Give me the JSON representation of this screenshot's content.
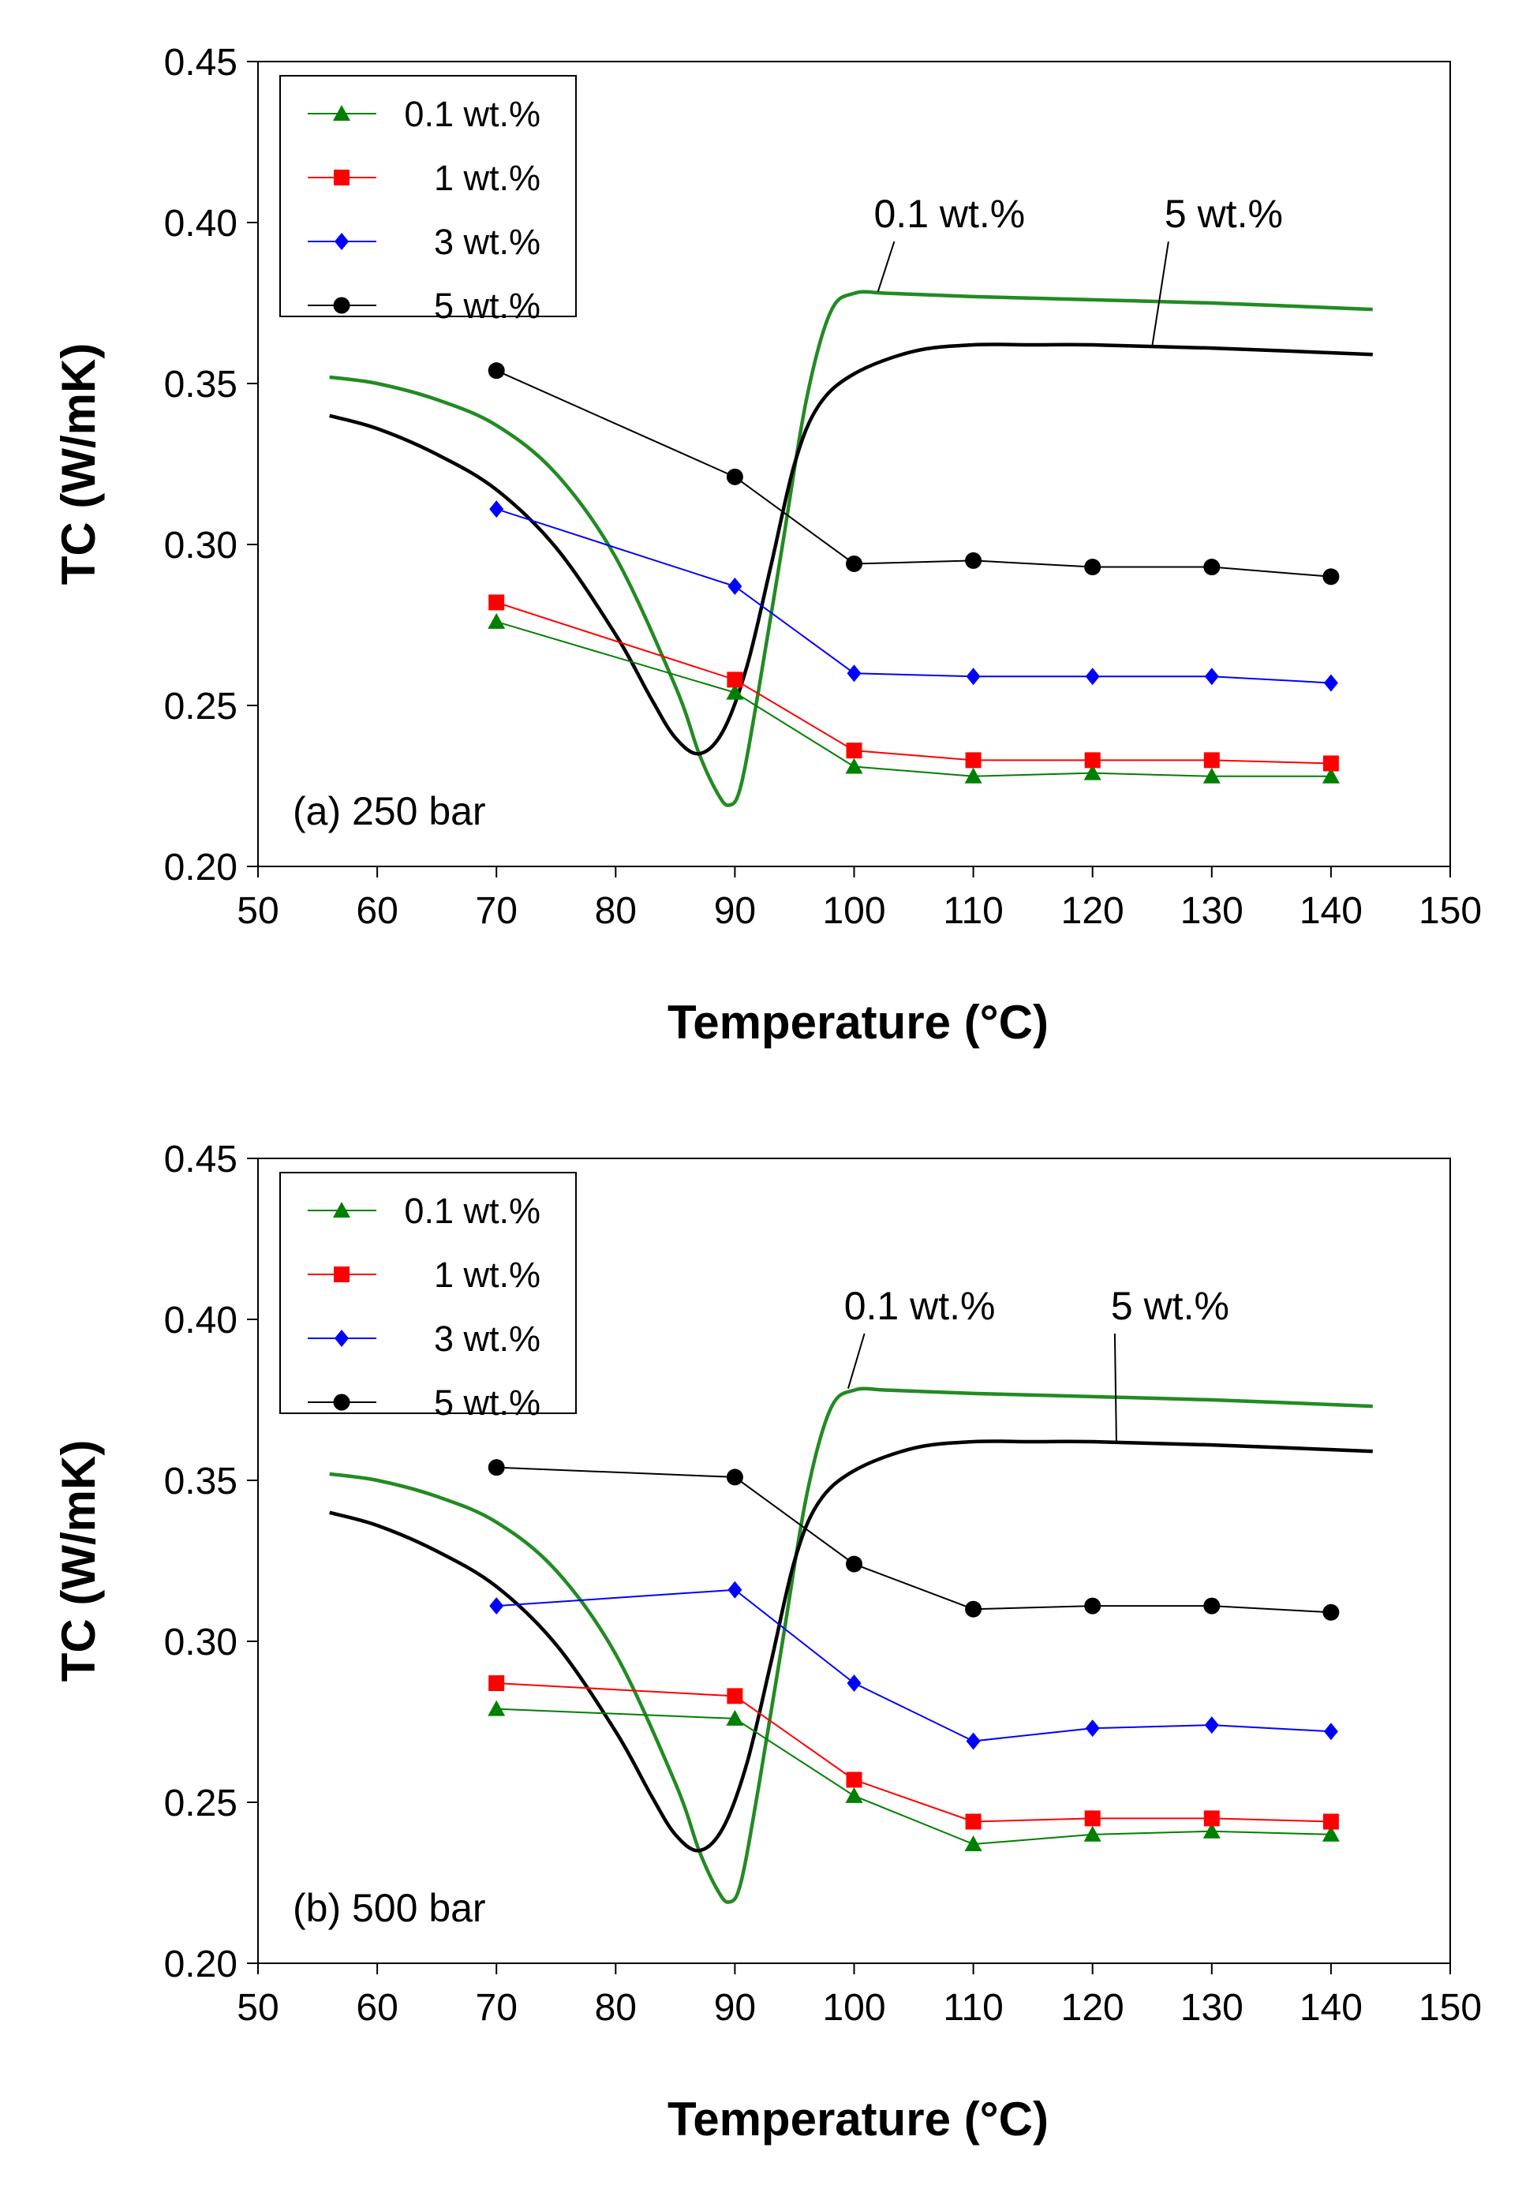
{
  "figure_labels": {
    "legend_title": ""
  },
  "colors": {
    "s0.1": "#008000",
    "s1": "#ff0000",
    "s3": "#0000ff",
    "s5": "#000000",
    "curve0.1": "#228b22",
    "curve5": "#000000"
  },
  "chart_data": [
    {
      "type": "line",
      "panel_label": "(a) 250 bar",
      "xlabel": "Temperature (°C)",
      "ylabel": "TC (W/mK)",
      "xlim": [
        50,
        150
      ],
      "ylim": [
        0.2,
        0.45
      ],
      "x_ticks": [
        "50",
        "60",
        "70",
        "80",
        "90",
        "100",
        "110",
        "120",
        "130",
        "140",
        "150"
      ],
      "y_ticks": [
        "0.20",
        "0.25",
        "0.30",
        "0.35",
        "0.40",
        "0.45"
      ],
      "legend": [
        "0.1 wt.%",
        "1 wt.%",
        "3 wt.%",
        "5 wt.%"
      ],
      "series": [
        {
          "name": "0.1 wt.%",
          "marker": "triangle",
          "x": [
            70,
            90,
            100,
            110,
            120,
            130,
            140
          ],
          "values": [
            0.276,
            0.254,
            0.231,
            0.228,
            0.229,
            0.228,
            0.228
          ]
        },
        {
          "name": "1 wt.%",
          "marker": "square",
          "x": [
            70,
            90,
            100,
            110,
            120,
            130,
            140
          ],
          "values": [
            0.282,
            0.258,
            0.236,
            0.233,
            0.233,
            0.233,
            0.232
          ]
        },
        {
          "name": "3 wt.%",
          "marker": "diamond",
          "x": [
            70,
            90,
            100,
            110,
            120,
            130,
            140
          ],
          "values": [
            0.311,
            0.287,
            0.26,
            0.259,
            0.259,
            0.259,
            0.257
          ]
        },
        {
          "name": "5 wt.%",
          "marker": "circle",
          "x": [
            70,
            90,
            100,
            110,
            120,
            130,
            140
          ],
          "values": [
            0.354,
            0.321,
            0.294,
            0.295,
            0.293,
            0.293,
            0.29
          ]
        }
      ],
      "curves": [
        {
          "name": "0.1 wt.%",
          "x": [
            56,
            60,
            65,
            70,
            75,
            80,
            85,
            87,
            88.5,
            89.5,
            90.5,
            92,
            94,
            96,
            98,
            100,
            103,
            110,
            120,
            130,
            143.5
          ],
          "values": [
            0.352,
            0.35,
            0.345,
            0.337,
            0.322,
            0.296,
            0.256,
            0.235,
            0.223,
            0.219,
            0.225,
            0.255,
            0.3,
            0.345,
            0.372,
            0.378,
            0.378,
            0.377,
            0.376,
            0.375,
            0.373
          ]
        },
        {
          "name": "5 wt.%",
          "x": [
            56,
            60,
            65,
            70,
            75,
            80,
            83,
            85,
            87,
            89,
            91,
            93,
            95,
            97,
            100,
            105,
            110,
            115,
            120,
            130,
            143.5
          ],
          "values": [
            0.34,
            0.336,
            0.328,
            0.317,
            0.299,
            0.272,
            0.252,
            0.24,
            0.235,
            0.242,
            0.262,
            0.293,
            0.325,
            0.343,
            0.353,
            0.36,
            0.362,
            0.362,
            0.362,
            0.361,
            0.359
          ]
        }
      ],
      "annotations": [
        {
          "text": "0.1 wt.%",
          "text_x": 108,
          "text_y": 0.3985,
          "point_x": 102,
          "point_y": 0.3785
        },
        {
          "text": "5 wt.%",
          "text_x": 131,
          "text_y": 0.3985,
          "point_x": 125,
          "point_y": 0.3615
        }
      ]
    },
    {
      "type": "line",
      "panel_label": "(b) 500 bar",
      "xlabel": "Temperature (°C)",
      "ylabel": "TC (W/mK)",
      "xlim": [
        50,
        150
      ],
      "ylim": [
        0.2,
        0.45
      ],
      "x_ticks": [
        "50",
        "60",
        "70",
        "80",
        "90",
        "100",
        "110",
        "120",
        "130",
        "140",
        "150"
      ],
      "y_ticks": [
        "0.20",
        "0.25",
        "0.30",
        "0.35",
        "0.40",
        "0.45"
      ],
      "legend": [
        "0.1 wt.%",
        "1 wt.%",
        "3 wt.%",
        "5 wt.%"
      ],
      "series": [
        {
          "name": "0.1 wt.%",
          "marker": "triangle",
          "x": [
            70,
            90,
            100,
            110,
            120,
            130,
            140
          ],
          "values": [
            0.279,
            0.276,
            0.252,
            0.237,
            0.24,
            0.241,
            0.24
          ]
        },
        {
          "name": "1 wt.%",
          "marker": "square",
          "x": [
            70,
            90,
            100,
            110,
            120,
            130,
            140
          ],
          "values": [
            0.287,
            0.283,
            0.257,
            0.244,
            0.245,
            0.245,
            0.244
          ]
        },
        {
          "name": "3 wt.%",
          "marker": "diamond",
          "x": [
            70,
            90,
            100,
            110,
            120,
            130,
            140
          ],
          "values": [
            0.311,
            0.316,
            0.287,
            0.269,
            0.273,
            0.274,
            0.272
          ]
        },
        {
          "name": "5 wt.%",
          "marker": "circle",
          "x": [
            70,
            90,
            100,
            110,
            120,
            130,
            140
          ],
          "values": [
            0.354,
            0.351,
            0.324,
            0.31,
            0.311,
            0.311,
            0.309
          ]
        }
      ],
      "curves": [
        {
          "name": "0.1 wt.%",
          "x": [
            56,
            60,
            65,
            70,
            75,
            80,
            85,
            87,
            88.5,
            89.5,
            90.5,
            92,
            94,
            96,
            98,
            100,
            103,
            110,
            120,
            130,
            143.5
          ],
          "values": [
            0.352,
            0.35,
            0.345,
            0.337,
            0.322,
            0.296,
            0.256,
            0.235,
            0.223,
            0.219,
            0.225,
            0.255,
            0.3,
            0.345,
            0.372,
            0.378,
            0.378,
            0.377,
            0.376,
            0.375,
            0.373
          ]
        },
        {
          "name": "5 wt.%",
          "x": [
            56,
            60,
            65,
            70,
            75,
            80,
            83,
            85,
            87,
            89,
            91,
            93,
            95,
            97,
            100,
            105,
            110,
            115,
            120,
            130,
            143.5
          ],
          "values": [
            0.34,
            0.336,
            0.328,
            0.317,
            0.299,
            0.272,
            0.252,
            0.24,
            0.235,
            0.242,
            0.262,
            0.293,
            0.325,
            0.343,
            0.353,
            0.36,
            0.362,
            0.362,
            0.362,
            0.361,
            0.359
          ]
        }
      ],
      "annotations": [
        {
          "text": "0.1 wt.%",
          "text_x": 105.5,
          "text_y": 0.4,
          "point_x": 99.5,
          "point_y": 0.3785
        },
        {
          "text": "5 wt.%",
          "text_x": 126.5,
          "text_y": 0.4,
          "point_x": 122,
          "point_y": 0.362
        }
      ]
    }
  ]
}
